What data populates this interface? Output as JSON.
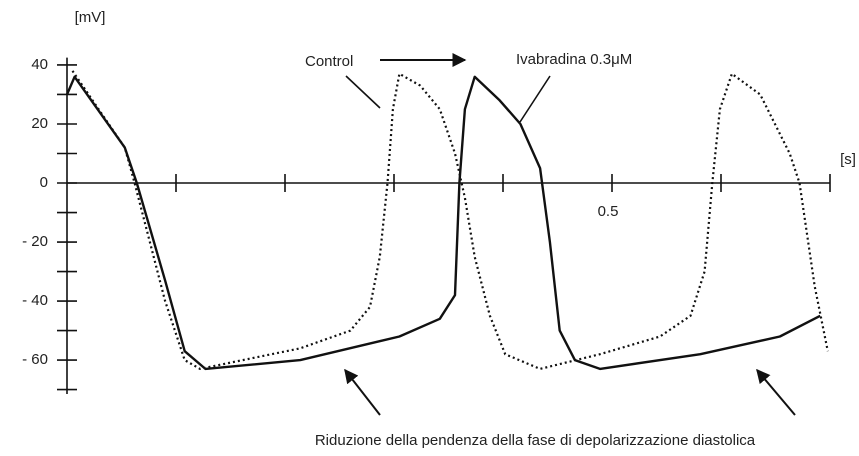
{
  "chart_data": {
    "type": "line",
    "y_label": "[mV]",
    "x_label": "[s]",
    "xlim": [
      0,
      0.7
    ],
    "ylim": [
      -71.5,
      42.5
    ],
    "xticks": [
      {
        "value": 0.1,
        "label": null
      },
      {
        "value": 0.2,
        "label": null
      },
      {
        "value": 0.3,
        "label": null
      },
      {
        "value": 0.4,
        "label": null
      },
      0.5,
      {
        "value": 0.6,
        "label": null
      },
      {
        "value": 0.7,
        "label": null
      }
    ],
    "yticks": [
      40,
      {
        "value": 30,
        "label": null
      },
      20,
      {
        "value": 10,
        "label": null
      },
      0,
      {
        "value": -10,
        "label": null
      },
      {
        "value": -20,
        "label": "- 20"
      },
      {
        "value": -30,
        "label": null
      },
      {
        "value": -40,
        "label": "- 40"
      },
      {
        "value": -50,
        "label": null
      },
      {
        "value": -60,
        "label": "- 60"
      },
      {
        "value": -70,
        "label": null
      }
    ],
    "series": [
      {
        "name": "Control",
        "color": "#111",
        "dash": "dotted",
        "x": [
          0.005,
          0.053,
          0.062,
          0.09,
          0.108,
          0.122,
          0.214,
          0.26,
          0.278,
          0.287,
          0.294,
          0.299,
          0.305,
          0.324,
          0.342,
          0.356,
          0.365,
          0.374,
          0.388,
          0.402,
          0.434,
          0.489,
          0.544,
          0.572,
          0.585,
          0.592,
          0.599,
          0.61,
          0.636,
          0.663,
          0.672,
          0.686,
          0.698
        ],
        "values": [
          38,
          12,
          0,
          -40,
          -60,
          -63,
          -56,
          -50,
          -42,
          -25,
          0,
          25,
          37,
          33,
          25,
          10,
          -5,
          -25,
          -45,
          -58,
          -63,
          -58,
          -52,
          -45,
          -30,
          0,
          25,
          37,
          30,
          10,
          0,
          -35,
          -57
        ]
      },
      {
        "name": "Ivabradina 0.3μM",
        "color": "#111",
        "dash": "solid",
        "x": [
          0,
          0.007,
          0.053,
          0.064,
          0.09,
          0.108,
          0.127,
          0.214,
          0.305,
          0.342,
          0.356,
          0.36,
          0.365,
          0.374,
          0.397,
          0.416,
          0.434,
          0.443,
          0.452,
          0.466,
          0.489,
          0.581,
          0.654,
          0.691
        ],
        "values": [
          30,
          36,
          12,
          0,
          -33,
          -57,
          -63,
          -60,
          -52,
          -46,
          -38,
          0,
          25,
          36,
          28,
          20,
          5,
          -20,
          -50,
          -60,
          -63,
          -58,
          -52,
          -45
        ]
      }
    ],
    "annotation": "Riduzione della pendenza della fase di depolarizzazione diastolica"
  }
}
